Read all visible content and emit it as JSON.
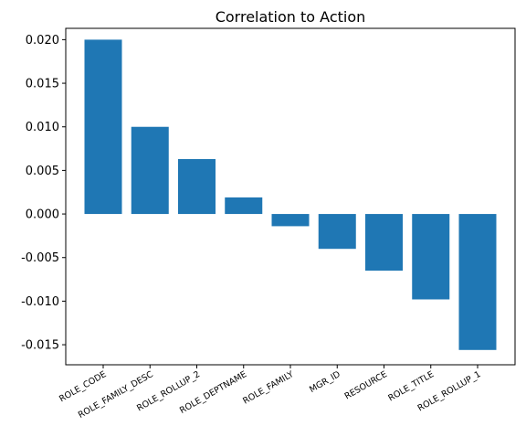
{
  "chart_data": {
    "type": "bar",
    "title": "Correlation to Action",
    "xlabel": "",
    "ylabel": "",
    "categories": [
      "ROLE_CODE",
      "ROLE_FAMILY_DESC",
      "ROLE_ROLLUP_2",
      "ROLE_DEPTNAME",
      "ROLE_FAMILY",
      "MGR_ID",
      "RESOURCE",
      "ROLE_TITLE",
      "ROLE_ROLLUP_1"
    ],
    "values": [
      0.02,
      0.01,
      0.0063,
      0.0019,
      -0.0014,
      -0.004,
      -0.0065,
      -0.0098,
      -0.0156
    ],
    "ylim": [
      -0.0173,
      0.0213
    ],
    "yticks": [
      "0.020",
      "0.015",
      "0.010",
      "0.005",
      "0.000",
      "-0.005",
      "-0.010",
      "-0.015"
    ],
    "ytick_values": [
      0.02,
      0.015,
      0.01,
      0.005,
      0.0,
      -0.005,
      -0.01,
      -0.015
    ],
    "bar_color": "#1f77b4",
    "grid": false,
    "legend": false
  }
}
